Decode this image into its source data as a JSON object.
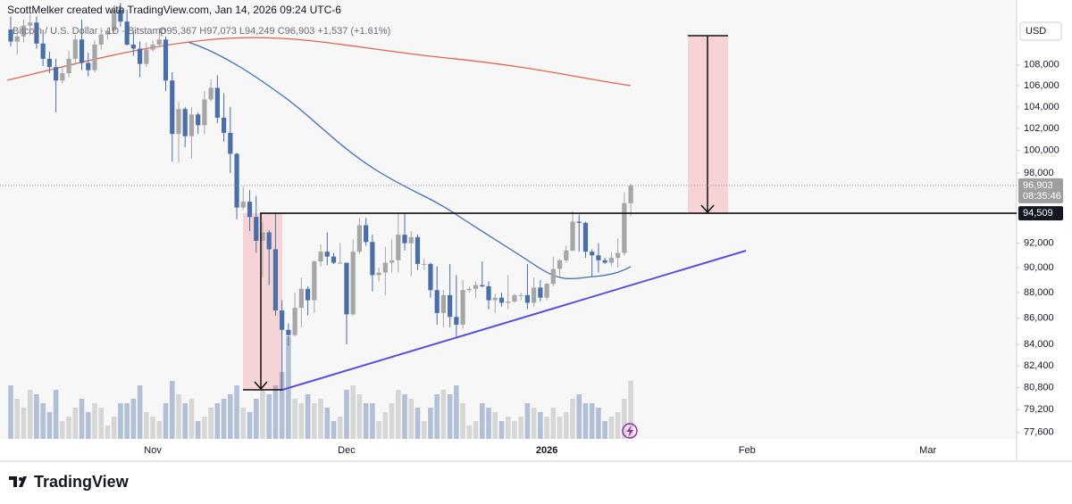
{
  "chart_data": {
    "type": "candlestick",
    "attribution": "ScottMelker created with TradingView.com, Jan 14, 2026 09:24 UTC-6",
    "symbol": "Bitcoin / U.S. Dollar · 1D · Bitstamp",
    "ohlc": "O95,367 H97,073 L94,249 C96,903 +1,537 (+1.61%)",
    "currency": "USD",
    "footer": "TradingView",
    "log_scale": true,
    "up_color": "#a6a6a6",
    "down_color": "#4a6ea8",
    "ylim": [
      77150,
      114500
    ],
    "yticks": [
      {
        "value": 108000,
        "label": "108,000"
      },
      {
        "value": 106000,
        "label": "106,000"
      },
      {
        "value": 104000,
        "label": "104,000"
      },
      {
        "value": 102000,
        "label": "102,000"
      },
      {
        "value": 100000,
        "label": "100,000"
      },
      {
        "value": 98000,
        "label": "98,000"
      },
      {
        "value": 92000,
        "label": "92,000"
      },
      {
        "value": 90000,
        "label": "90,000"
      },
      {
        "value": 88000,
        "label": "88,000"
      },
      {
        "value": 86000,
        "label": "86,000"
      },
      {
        "value": 84000,
        "label": "84,000"
      },
      {
        "value": 82400,
        "label": "82,400"
      },
      {
        "value": 80800,
        "label": "80,800"
      },
      {
        "value": 79200,
        "label": "79,200"
      },
      {
        "value": 77600,
        "label": "77,600"
      }
    ],
    "last_price": {
      "value": 96903,
      "label": "96,903"
    },
    "countdown": "08:35:46",
    "price_line": {
      "value": 94509,
      "label": "94,509"
    },
    "categories": [
      null,
      null,
      null,
      null,
      null,
      null,
      null,
      null,
      null,
      null,
      null,
      null,
      null,
      null,
      null,
      null,
      null,
      null,
      null,
      null,
      null,
      null,
      "Nov",
      null,
      null,
      null,
      null,
      null,
      null,
      null,
      null,
      null,
      null,
      null,
      null,
      null,
      null,
      null,
      null,
      null,
      null,
      null,
      null,
      null,
      null,
      null,
      null,
      null,
      null,
      null,
      null,
      null,
      "Dec",
      null,
      null,
      null,
      null,
      null,
      null,
      null,
      null,
      null,
      null,
      null,
      null,
      null,
      null,
      null,
      null,
      null,
      null,
      null,
      null,
      null,
      null,
      null,
      null,
      null,
      null,
      null,
      null,
      null,
      null,
      "2026",
      null,
      null,
      null,
      null,
      null,
      null,
      null,
      null,
      null,
      null,
      null,
      null,
      null,
      null,
      null,
      null,
      null,
      null,
      null,
      null,
      null,
      null,
      null,
      null,
      null,
      null,
      null,
      null,
      null,
      null,
      "Feb",
      null,
      null,
      null,
      null,
      null,
      null,
      null,
      null,
      null,
      null,
      null,
      null,
      null,
      null,
      null,
      null,
      null,
      null,
      null,
      null,
      null,
      null,
      null,
      null,
      null,
      null,
      null,
      "Mar",
      null,
      null,
      null,
      null,
      null,
      null,
      null,
      null,
      null,
      null,
      null,
      null,
      null
    ],
    "open": [
      111500,
      110300,
      110800,
      111900,
      112200,
      110100,
      108600,
      107800,
      106500,
      107200,
      108600,
      110500,
      108200,
      107500,
      110000,
      111000,
      111400,
      113500,
      112300,
      110000,
      109600,
      108100,
      109500,
      110000,
      110500,
      106500,
      101500,
      103800,
      101300,
      103300,
      102300,
      104700,
      105800,
      103000,
      101600,
      99700,
      95000,
      95500,
      94200,
      92200,
      92900,
      91500,
      86600,
      85100,
      84700,
      86800,
      88300,
      87400,
      90500,
      91300,
      90900,
      90400,
      90400,
      86300,
      91300,
      93500,
      92100,
      89400,
      89600,
      90400,
      90600,
      92700,
      92000,
      92500,
      90300,
      90300,
      88200,
      86400,
      87800,
      86100,
      85500,
      88200,
      88300,
      88600,
      88500,
      87400,
      87600,
      87200,
      87300,
      87800,
      87800,
      87200,
      88400,
      87600,
      88700,
      89900,
      90600,
      91400,
      93800,
      93700,
      91300,
      91000,
      90600,
      90400,
      90800,
      91200,
      95367,
      null,
      null,
      null,
      null,
      null,
      null,
      null,
      null,
      null,
      null,
      null,
      null,
      null,
      null,
      null,
      null,
      null,
      null,
      null,
      null,
      null,
      null,
      null,
      null,
      null,
      null,
      null,
      null,
      null,
      null,
      null,
      null,
      null,
      null,
      null,
      null,
      null,
      null,
      null,
      null,
      null,
      null,
      null,
      null,
      null,
      null,
      null,
      null,
      null,
      null,
      null,
      null,
      null,
      null,
      null,
      null,
      null,
      null,
      null
    ],
    "high": [
      112800,
      111200,
      112500,
      113000,
      112800,
      111500,
      109300,
      108600,
      107800,
      109400,
      111000,
      112500,
      109200,
      110400,
      111700,
      111600,
      113800,
      114200,
      113500,
      111400,
      110300,
      110200,
      110400,
      111200,
      110800,
      107300,
      104500,
      104000,
      104000,
      103500,
      105500,
      106600,
      107000,
      105300,
      104000,
      99800,
      96800,
      96500,
      96000,
      93800,
      93100,
      94500,
      87400,
      85600,
      88000,
      89200,
      88500,
      90600,
      91900,
      92900,
      91200,
      92000,
      90400,
      92300,
      94100,
      94100,
      92700,
      90000,
      91700,
      92300,
      94600,
      94500,
      93000,
      92700,
      90700,
      90400,
      90100,
      88200,
      90300,
      89400,
      89000,
      88500,
      88900,
      90500,
      88900,
      87900,
      88000,
      89400,
      87900,
      88000,
      90300,
      89200,
      89000,
      88800,
      90900,
      90700,
      91800,
      94700,
      94400,
      93800,
      91500,
      92000,
      90800,
      91300,
      92400,
      96300,
      97073,
      null,
      null,
      null,
      null,
      null,
      null,
      null,
      null,
      null,
      null,
      null,
      null,
      null,
      null,
      null,
      null,
      null,
      null,
      null,
      null,
      null,
      null,
      null,
      null,
      null,
      null,
      null,
      null,
      null,
      null,
      null,
      null,
      null,
      null,
      null,
      null,
      null,
      null,
      null,
      null,
      null,
      null,
      null,
      null,
      null,
      null,
      null,
      null,
      null,
      null,
      null,
      null,
      null,
      null,
      null,
      null,
      null,
      null,
      null
    ],
    "low": [
      109800,
      109000,
      110200,
      110900,
      109600,
      107900,
      107200,
      103500,
      106200,
      106800,
      108000,
      107500,
      106900,
      107300,
      109500,
      110500,
      111200,
      111800,
      109900,
      108900,
      106800,
      107800,
      109300,
      109700,
      105500,
      99000,
      98900,
      100300,
      99300,
      101500,
      101500,
      104500,
      102500,
      100800,
      98000,
      94000,
      94800,
      93000,
      91200,
      89200,
      88600,
      86200,
      80600,
      83900,
      84600,
      85300,
      86200,
      86400,
      90100,
      90200,
      90300,
      90300,
      84000,
      86200,
      91100,
      91800,
      88100,
      88900,
      87800,
      89600,
      89600,
      91400,
      89300,
      89800,
      89800,
      87600,
      85500,
      85300,
      85300,
      84500,
      85200,
      88000,
      87600,
      88400,
      86700,
      86400,
      86900,
      86700,
      87200,
      87400,
      86700,
      86900,
      87300,
      87400,
      88500,
      89300,
      90400,
      91300,
      91300,
      90800,
      89300,
      89600,
      90300,
      90100,
      90000,
      91000,
      94249,
      null,
      null,
      null,
      null,
      null,
      null,
      null,
      null,
      null,
      null,
      null,
      null,
      null,
      null,
      null,
      null,
      null,
      null,
      null,
      null,
      null,
      null,
      null,
      null,
      null,
      null,
      null,
      null,
      null,
      null,
      null,
      null,
      null,
      null,
      null,
      null,
      null,
      null,
      null,
      null,
      null,
      null,
      null,
      null,
      null,
      null,
      null,
      null,
      null,
      null,
      null,
      null,
      null,
      null,
      null,
      null,
      null,
      null,
      null
    ],
    "close": [
      110300,
      110800,
      111900,
      112200,
      110100,
      108600,
      107800,
      106500,
      107200,
      108600,
      110500,
      108200,
      107500,
      110000,
      111000,
      111400,
      113500,
      112300,
      110000,
      109600,
      108100,
      109500,
      110000,
      110500,
      106500,
      101500,
      103800,
      101300,
      103300,
      102300,
      104700,
      105800,
      103000,
      101600,
      99700,
      95000,
      95500,
      94200,
      92200,
      92900,
      91500,
      86600,
      85100,
      84700,
      86800,
      88300,
      87400,
      90500,
      91300,
      90900,
      90400,
      90400,
      86300,
      91300,
      93500,
      92100,
      89400,
      89600,
      90400,
      90600,
      92700,
      92000,
      92500,
      90300,
      90300,
      88200,
      86400,
      87800,
      86100,
      85500,
      88200,
      88300,
      88600,
      88500,
      87400,
      87600,
      87200,
      87300,
      87800,
      87800,
      87200,
      88400,
      87600,
      88700,
      89900,
      90600,
      91400,
      93800,
      93700,
      91300,
      91000,
      90600,
      90400,
      90800,
      91200,
      95367,
      96903,
      null,
      null,
      null,
      null,
      null,
      null,
      null,
      null,
      null,
      null,
      null,
      null,
      null,
      null,
      null,
      null,
      null,
      null,
      null,
      null,
      null,
      null,
      null,
      null,
      null,
      null,
      null,
      null,
      null,
      null,
      null,
      null,
      null,
      null,
      null,
      null,
      null,
      null,
      null,
      null,
      null,
      null,
      null,
      null,
      null,
      null,
      null,
      null,
      null,
      null,
      null,
      null,
      null,
      null,
      null,
      null,
      null,
      null,
      null
    ],
    "volume": [
      60,
      45,
      35,
      55,
      50,
      40,
      30,
      55,
      20,
      25,
      35,
      45,
      30,
      40,
      35,
      15,
      25,
      40,
      40,
      45,
      60,
      30,
      25,
      20,
      40,
      65,
      50,
      40,
      45,
      20,
      25,
      35,
      40,
      45,
      50,
      60,
      35,
      30,
      45,
      55,
      50,
      60,
      75,
      115,
      45,
      40,
      50,
      40,
      45,
      35,
      20,
      25,
      55,
      60,
      50,
      40,
      40,
      20,
      30,
      40,
      55,
      50,
      45,
      35,
      20,
      35,
      50,
      55,
      50,
      60,
      40,
      15,
      20,
      40,
      35,
      30,
      20,
      25,
      20,
      25,
      40,
      35,
      30,
      25,
      35,
      25,
      30,
      45,
      50,
      40,
      40,
      35,
      20,
      25,
      30,
      45,
      65,
      null,
      null,
      null,
      null,
      null,
      null,
      null,
      null,
      null,
      null,
      null,
      null,
      null,
      null,
      null,
      null,
      null,
      null,
      null,
      null,
      null,
      null,
      null,
      null,
      null,
      null,
      null,
      null,
      null,
      null,
      null,
      null,
      null,
      null,
      null,
      null,
      null,
      null,
      null,
      null,
      null,
      null,
      null,
      null,
      null,
      null,
      null,
      null,
      null,
      null,
      null,
      null,
      null,
      null,
      null,
      null,
      null,
      null,
      null
    ]
  }
}
